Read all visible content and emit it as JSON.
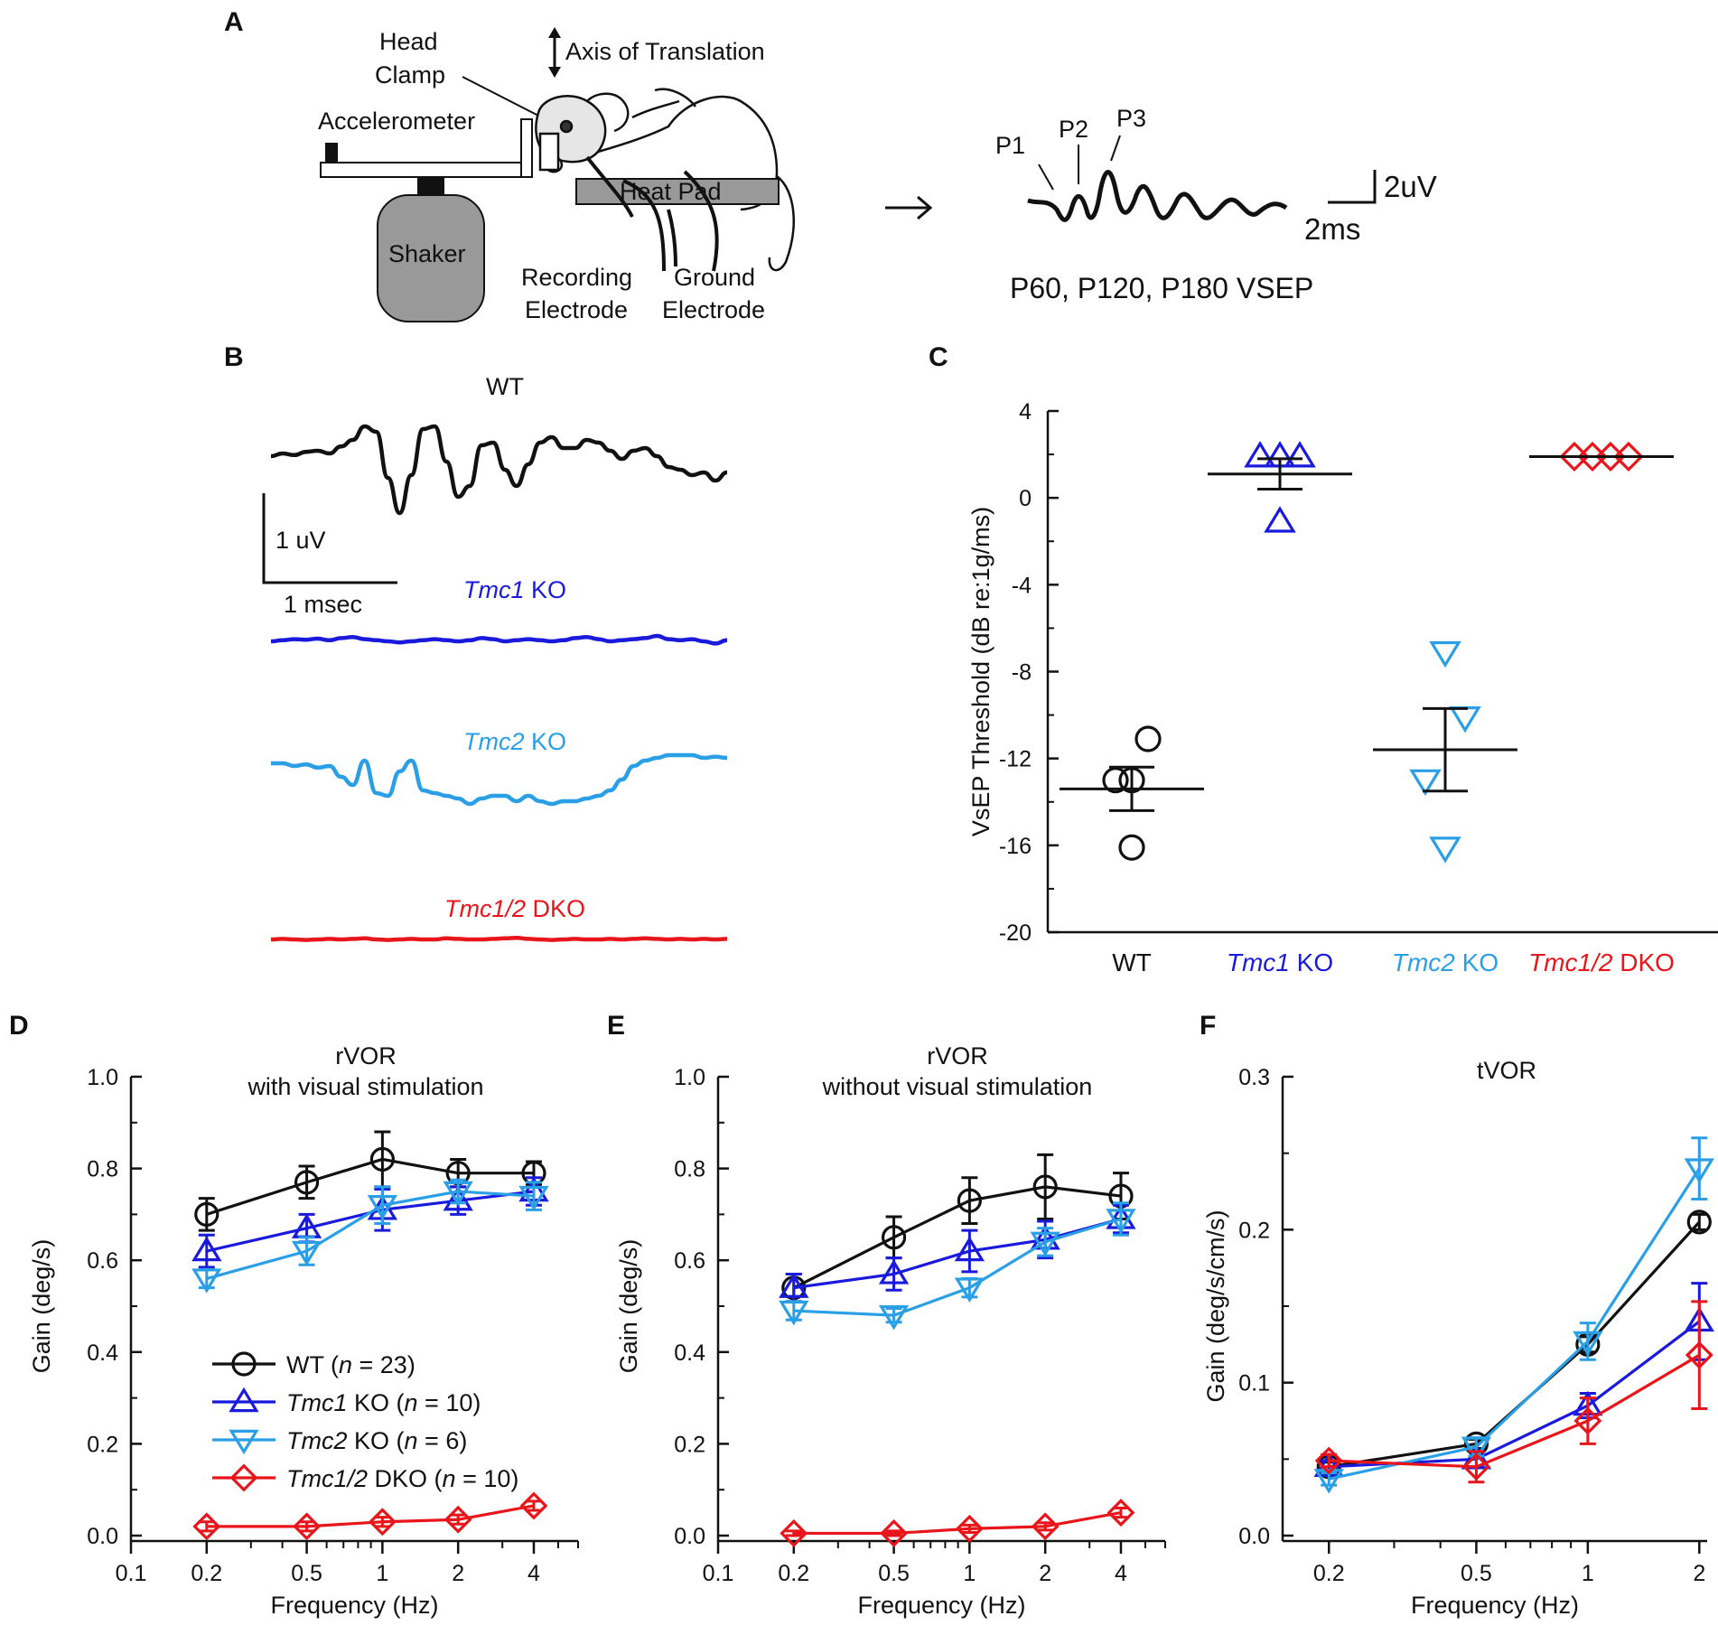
{
  "panels": {
    "a": "A",
    "b": "B",
    "c": "C",
    "d": "D",
    "e": "E",
    "f": "F"
  },
  "schematic": {
    "head_clamp": [
      "Head",
      "Clamp"
    ],
    "axis": "Axis of Translation",
    "accelerometer": "Accelerometer",
    "heat_pad": "Heat Pad",
    "shaker": "Shaker",
    "recording_electrode": [
      "Recording",
      "Electrode"
    ],
    "ground_electrode": [
      "Ground",
      "Electrode"
    ],
    "peaks": [
      "P1",
      "P2",
      "P3"
    ],
    "scale_v": "2uV",
    "scale_t": "2ms",
    "caption": "P60, P120, P180 VSEP"
  },
  "colors": {
    "wt": "#111111",
    "tmc1": "#1a1adc",
    "tmc2": "#2b9fe6",
    "dko": "#e8161b"
  },
  "chart_data": [
    {
      "id": "B",
      "type": "line",
      "title": "WT",
      "scale_v": "1 uV",
      "scale_t": "1 msec",
      "traces": [
        {
          "name": "WT",
          "label": "WT",
          "gene": "",
          "suffix": "",
          "color": "#111111",
          "values": [
            0,
            0.05,
            0.02,
            0.08,
            0.1,
            0.05,
            0.18,
            0.3,
            0.55,
            0.45,
            -0.4,
            -1.05,
            -0.35,
            0.5,
            0.55,
            -0.1,
            -0.75,
            -0.55,
            0.2,
            0.25,
            -0.25,
            -0.55,
            -0.15,
            0.25,
            0.35,
            0.15,
            0.15,
            0.3,
            0.25,
            0.1,
            -0.05,
            0.1,
            0.15,
            0.0,
            -0.2,
            -0.25,
            -0.35,
            -0.3,
            -0.45,
            -0.3
          ]
        },
        {
          "name": "Tmc1 KO",
          "label": "",
          "gene": "Tmc1",
          "suffix": " KO",
          "color": "#1a1adc",
          "values": [
            0,
            0.02,
            0.04,
            0.03,
            0.05,
            0.02,
            0.06,
            0.08,
            0.04,
            0.02,
            0,
            -0.02,
            0.0,
            0.02,
            0.04,
            0.02,
            0.0,
            0.02,
            0.06,
            0.04,
            0.0,
            0.02,
            0.04,
            0.02,
            0.0,
            0.02,
            0.06,
            0.08,
            0.04,
            0.0,
            0.02,
            0.04,
            0.06,
            0.1,
            0.04,
            0.02,
            0.04,
            0.0,
            -0.04,
            0.02
          ]
        },
        {
          "name": "Tmc2 KO",
          "label": "",
          "gene": "Tmc2",
          "suffix": " KO",
          "color": "#2b9fe6",
          "values": [
            0,
            0.0,
            -0.05,
            -0.02,
            -0.08,
            -0.05,
            -0.25,
            -0.4,
            0.05,
            -0.55,
            -0.6,
            -0.15,
            0.05,
            -0.5,
            -0.55,
            -0.6,
            -0.65,
            -0.75,
            -0.65,
            -0.6,
            -0.6,
            -0.7,
            -0.6,
            -0.7,
            -0.75,
            -0.7,
            -0.7,
            -0.65,
            -0.6,
            -0.5,
            -0.3,
            -0.05,
            0.05,
            0.1,
            0.15,
            0.15,
            0.15,
            0.1,
            0.12,
            0.1
          ]
        },
        {
          "name": "Tmc1/2 DKO",
          "label": "",
          "gene": "Tmc1/2",
          "suffix": " DKO",
          "color": "#e8161b",
          "values": [
            0,
            0.01,
            0.0,
            -0.01,
            0.0,
            0.01,
            0.0,
            0.01,
            0.02,
            0.0,
            -0.01,
            0.0,
            0.01,
            0.0,
            0.0,
            0.02,
            0.01,
            0.0,
            0.0,
            0.01,
            0.02,
            0.03,
            0.01,
            0.0,
            -0.01,
            0.0,
            0.01,
            0.0,
            0.0,
            0.01,
            0.0,
            0.01,
            0.02,
            0.01,
            0.0,
            0.01,
            0.0,
            0.01,
            0.0,
            0.01
          ]
        }
      ]
    },
    {
      "id": "C",
      "type": "scatter",
      "ylabel": "VsEP Threshold (dB re:1g/ms)",
      "ylim": [
        -20,
        4
      ],
      "yticks": [
        -20,
        -16,
        -12,
        -8,
        -4,
        0,
        4
      ],
      "categories": [
        {
          "name": "WT",
          "label": "WT",
          "gene": "",
          "suffix": "",
          "marker": "circle",
          "color": "#111111",
          "points": [
            [
              -0.18,
              -13
            ],
            [
              0.0,
              -13
            ],
            [
              0.18,
              -11.1
            ],
            [
              0.0,
              -16.1
            ]
          ],
          "mean": -13.4,
          "sem": 1.0
        },
        {
          "name": "Tmc1 KO",
          "label": "",
          "gene": "Tmc1",
          "suffix": " KO",
          "marker": "triangle-up",
          "color": "#1a1adc",
          "points": [
            [
              -0.22,
              1.9
            ],
            [
              0.0,
              1.9
            ],
            [
              0.22,
              1.9
            ],
            [
              0.0,
              -1.1
            ]
          ],
          "mean": 1.1,
          "sem": 0.7
        },
        {
          "name": "Tmc2 KO",
          "label": "",
          "gene": "Tmc2",
          "suffix": " KO",
          "marker": "triangle-down",
          "color": "#2b9fe6",
          "points": [
            [
              0.0,
              -7.1
            ],
            [
              0.22,
              -10.1
            ],
            [
              -0.22,
              -13.0
            ],
            [
              0.0,
              -16.1
            ]
          ],
          "mean": -11.6,
          "sem": 1.9
        },
        {
          "name": "Tmc1/2 DKO",
          "label": "",
          "gene": "Tmc1/2",
          "suffix": " DKO",
          "marker": "diamond",
          "color": "#e8161b",
          "points": [
            [
              -0.3,
              1.9
            ],
            [
              -0.1,
              1.9
            ],
            [
              0.1,
              1.9
            ],
            [
              0.3,
              1.9
            ]
          ],
          "mean": 1.9,
          "sem": 0
        }
      ]
    },
    {
      "id": "D",
      "type": "line",
      "xscale": "log",
      "title": [
        "rVOR",
        "with visual stimulation"
      ],
      "xlabel": "Frequency (Hz)",
      "ylabel": "Gain (deg/s)",
      "xlim": [
        0.1,
        6
      ],
      "ylim": [
        0,
        1.0
      ],
      "xticks": [
        0.1,
        0.2,
        0.5,
        1,
        2,
        4
      ],
      "xtick_labels": [
        "0.1",
        "0.2",
        "0.5",
        "1",
        "2",
        "4"
      ],
      "yticks": [
        0,
        0.2,
        0.4,
        0.6,
        0.8,
        1.0
      ],
      "ytick_labels": [
        "0.0",
        "0.2",
        "0.4",
        "0.6",
        "0.8",
        "1.0"
      ],
      "x": [
        0.2,
        0.5,
        1,
        2,
        4
      ],
      "series": [
        {
          "name": "WT",
          "marker": "circle",
          "color": "#111111",
          "values": [
            0.7,
            0.77,
            0.82,
            0.79,
            0.79
          ],
          "err": [
            0.035,
            0.035,
            0.06,
            0.03,
            0.025
          ]
        },
        {
          "name": "Tmc1 KO",
          "marker": "triangle-up",
          "color": "#1a1adc",
          "values": [
            0.62,
            0.67,
            0.71,
            0.73,
            0.75
          ],
          "err": [
            0.035,
            0.03,
            0.045,
            0.03,
            0.03
          ]
        },
        {
          "name": "Tmc2 KO",
          "marker": "triangle-down",
          "color": "#2b9fe6",
          "values": [
            0.56,
            0.62,
            0.72,
            0.75,
            0.74
          ],
          "err": [
            0.02,
            0.03,
            0.04,
            0.025,
            0.03
          ]
        },
        {
          "name": "Tmc1/2 DKO",
          "marker": "diamond",
          "color": "#e8161b",
          "values": [
            0.02,
            0.02,
            0.03,
            0.035,
            0.065
          ],
          "err": [
            0.01,
            0.01,
            0.01,
            0.01,
            0.01
          ]
        }
      ],
      "legend": [
        {
          "gene": "",
          "text": "WT (",
          "n": "n",
          "rest": " = 23)"
        },
        {
          "gene": "Tmc1",
          "text": " KO (",
          "n": "n",
          "rest": " = 10)"
        },
        {
          "gene": "Tmc2",
          "text": " KO (",
          "n": "n",
          "rest": " = 6)"
        },
        {
          "gene": "Tmc1/2",
          "text": " DKO (",
          "n": "n",
          "rest": " = 10)"
        }
      ]
    },
    {
      "id": "E",
      "type": "line",
      "xscale": "log",
      "title": [
        "rVOR",
        "without visual stimulation"
      ],
      "xlabel": "Frequency (Hz)",
      "ylabel": "Gain (deg/s)",
      "xlim": [
        0.1,
        6
      ],
      "ylim": [
        0,
        1.0
      ],
      "xticks": [
        0.1,
        0.2,
        0.5,
        1,
        2,
        4
      ],
      "xtick_labels": [
        "0.1",
        "0.2",
        "0.5",
        "1",
        "2",
        "4"
      ],
      "yticks": [
        0,
        0.2,
        0.4,
        0.6,
        0.8,
        1.0
      ],
      "ytick_labels": [
        "0.0",
        "0.2",
        "0.4",
        "0.6",
        "0.8",
        "1.0"
      ],
      "x": [
        0.2,
        0.5,
        1,
        2,
        4
      ],
      "series": [
        {
          "name": "WT",
          "marker": "circle",
          "color": "#111111",
          "values": [
            0.54,
            0.65,
            0.73,
            0.76,
            0.74
          ],
          "err": [
            0.03,
            0.045,
            0.05,
            0.07,
            0.05
          ]
        },
        {
          "name": "Tmc1 KO",
          "marker": "triangle-up",
          "color": "#1a1adc",
          "values": [
            0.54,
            0.57,
            0.62,
            0.645,
            0.69
          ],
          "err": [
            0.03,
            0.035,
            0.045,
            0.04,
            0.03
          ]
        },
        {
          "name": "Tmc2 KO",
          "marker": "triangle-down",
          "color": "#2b9fe6",
          "values": [
            0.49,
            0.48,
            0.54,
            0.64,
            0.69
          ],
          "err": [
            0.02,
            0.015,
            0.02,
            0.03,
            0.035
          ]
        },
        {
          "name": "Tmc1/2 DKO",
          "marker": "diamond",
          "color": "#e8161b",
          "values": [
            0.005,
            0.005,
            0.015,
            0.02,
            0.05
          ],
          "err": [
            0.005,
            0.005,
            0.008,
            0.008,
            0.01
          ]
        }
      ]
    },
    {
      "id": "F",
      "type": "line",
      "xscale": "log",
      "title": [
        "tVOR"
      ],
      "xlabel": "Frequency (Hz)",
      "ylabel": "Gain (deg/s/cm/s)",
      "xlim": [
        0.15,
        2.1
      ],
      "ylim": [
        0,
        0.3
      ],
      "xticks": [
        0.2,
        0.5,
        1,
        2
      ],
      "xtick_labels": [
        "0.2",
        "0.5",
        "1",
        "2"
      ],
      "yticks": [
        0,
        0.1,
        0.2,
        0.3
      ],
      "ytick_labels": [
        "0.0",
        "0.1",
        "0.2",
        "0.3"
      ],
      "x": [
        0.2,
        0.5,
        1,
        2
      ],
      "series": [
        {
          "name": "WT",
          "marker": "circle",
          "color": "#111111",
          "values": [
            0.045,
            0.06,
            0.125,
            0.205
          ],
          "err": [
            0.003,
            0.003,
            0.005,
            0.005
          ]
        },
        {
          "name": "Tmc1 KO",
          "marker": "triangle-up",
          "color": "#1a1adc",
          "values": [
            0.045,
            0.05,
            0.085,
            0.14
          ],
          "err": [
            0.004,
            0.005,
            0.008,
            0.025
          ]
        },
        {
          "name": "Tmc2 KO",
          "marker": "triangle-down",
          "color": "#2b9fe6",
          "values": [
            0.037,
            0.058,
            0.127,
            0.24
          ],
          "err": [
            0.004,
            0.006,
            0.012,
            0.02
          ]
        },
        {
          "name": "Tmc1/2 DKO",
          "marker": "diamond",
          "color": "#e8161b",
          "values": [
            0.049,
            0.045,
            0.075,
            0.118
          ],
          "err": [
            0.004,
            0.01,
            0.015,
            0.035
          ]
        }
      ]
    }
  ]
}
